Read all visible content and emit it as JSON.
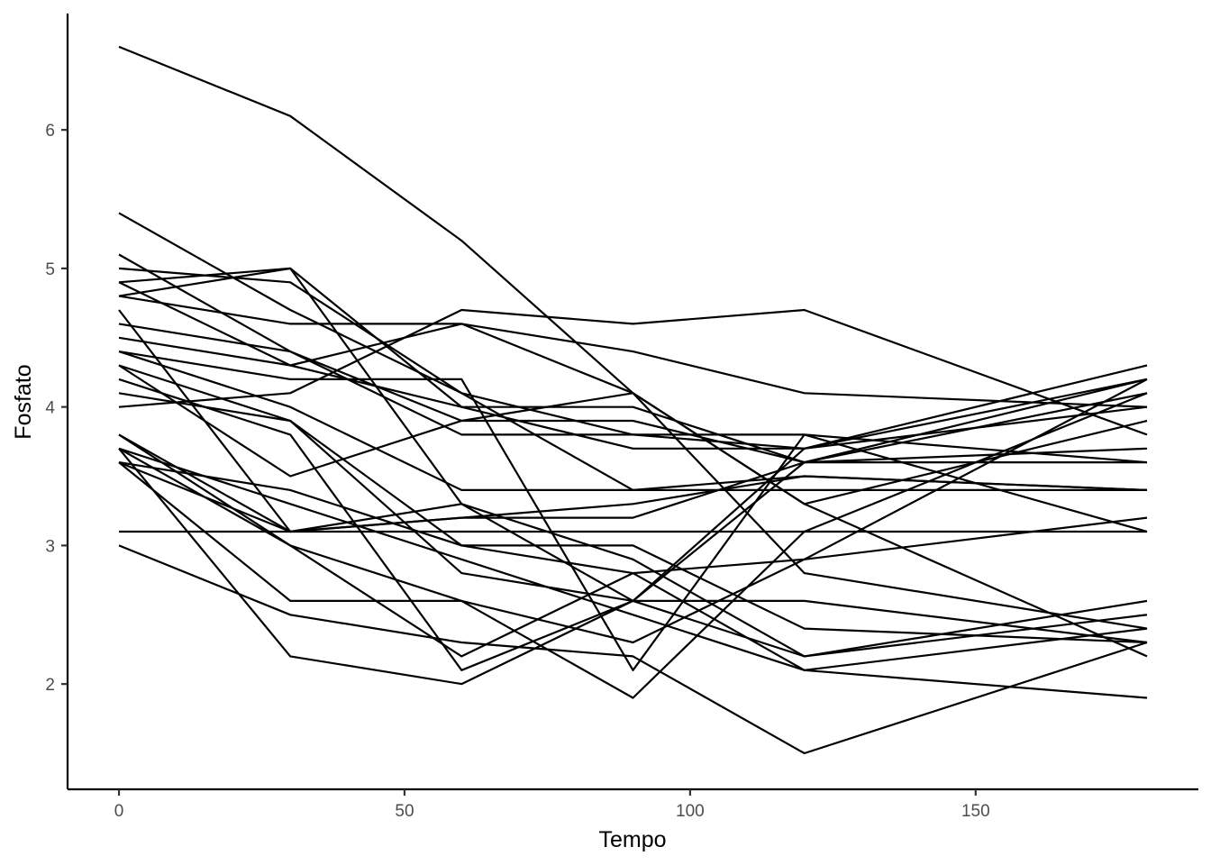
{
  "chart_data": {
    "type": "line",
    "title": "",
    "xlabel": "Tempo",
    "ylabel": "Fosfato",
    "x": [
      0,
      30,
      60,
      90,
      120,
      180
    ],
    "x_ticks": [
      "0",
      "50",
      "100",
      "150"
    ],
    "y_ticks": [
      "2",
      "3",
      "4",
      "5",
      "6"
    ],
    "xlim": [
      -9,
      189
    ],
    "ylim": [
      1.24,
      6.84
    ],
    "grid": false,
    "legend": "none",
    "line_color": "#000000",
    "series": [
      {
        "values": [
          6.6,
          6.1,
          5.2,
          4.1,
          3.3,
          2.2
        ]
      },
      {
        "values": [
          5.4,
          4.7,
          4.1,
          3.8,
          3.7,
          4.0
        ]
      },
      {
        "values": [
          5.1,
          4.4,
          3.8,
          3.8,
          3.8,
          3.6
        ]
      },
      {
        "values": [
          5.0,
          4.9,
          4.1,
          3.4,
          3.4,
          3.4
        ]
      },
      {
        "values": [
          4.9,
          5.0,
          4.0,
          4.0,
          3.6,
          3.6
        ]
      },
      {
        "values": [
          4.8,
          5.0,
          3.3,
          2.6,
          2.2,
          2.5
        ]
      },
      {
        "values": [
          4.8,
          4.6,
          4.6,
          4.4,
          4.1,
          4.0
        ]
      },
      {
        "values": [
          4.7,
          3.1,
          3.2,
          3.3,
          3.5,
          3.4
        ]
      },
      {
        "values": [
          4.6,
          4.4,
          3.9,
          3.9,
          3.6,
          4.1
        ]
      },
      {
        "values": [
          4.5,
          4.3,
          4.6,
          4.1,
          2.8,
          2.4
        ]
      },
      {
        "values": [
          4.4,
          4.2,
          4.2,
          2.1,
          3.8,
          3.1
        ]
      },
      {
        "values": [
          4.4,
          4.0,
          3.4,
          3.4,
          3.5,
          3.4
        ]
      },
      {
        "values": [
          4.3,
          3.9,
          2.8,
          2.6,
          2.6,
          2.3
        ]
      },
      {
        "values": [
          4.3,
          3.5,
          3.9,
          4.1,
          3.3,
          3.9
        ]
      },
      {
        "values": [
          4.2,
          3.8,
          2.1,
          2.6,
          3.6,
          4.2
        ]
      },
      {
        "values": [
          4.1,
          3.9,
          3.0,
          2.8,
          2.9,
          3.2
        ]
      },
      {
        "values": [
          4.0,
          4.1,
          4.7,
          4.6,
          4.7,
          3.8
        ]
      },
      {
        "values": [
          3.8,
          3.1,
          3.3,
          2.9,
          2.2,
          2.6
        ]
      },
      {
        "values": [
          3.8,
          3.0,
          2.6,
          2.3,
          2.9,
          4.2
        ]
      },
      {
        "values": [
          3.7,
          2.2,
          2.0,
          2.6,
          3.7,
          4.3
        ]
      },
      {
        "values": [
          3.7,
          3.3,
          2.9,
          2.5,
          2.1,
          2.4
        ]
      },
      {
        "values": [
          3.6,
          2.6,
          2.6,
          1.9,
          3.1,
          4.1
        ]
      },
      {
        "values": [
          3.6,
          3.4,
          3.0,
          3.0,
          2.4,
          2.3
        ]
      },
      {
        "values": [
          3.6,
          3.1,
          3.2,
          3.2,
          3.6,
          3.7
        ]
      },
      {
        "values": [
          3.1,
          3.1,
          3.1,
          3.1,
          3.1,
          3.1
        ]
      },
      {
        "values": [
          3.0,
          2.5,
          2.3,
          2.2,
          1.5,
          2.3
        ]
      },
      {
        "values": [
          3.7,
          3.0,
          2.2,
          2.8,
          2.1,
          1.9
        ]
      },
      {
        "values": [
          4.9,
          4.3,
          4.0,
          3.7,
          3.7,
          4.2
        ]
      }
    ]
  }
}
